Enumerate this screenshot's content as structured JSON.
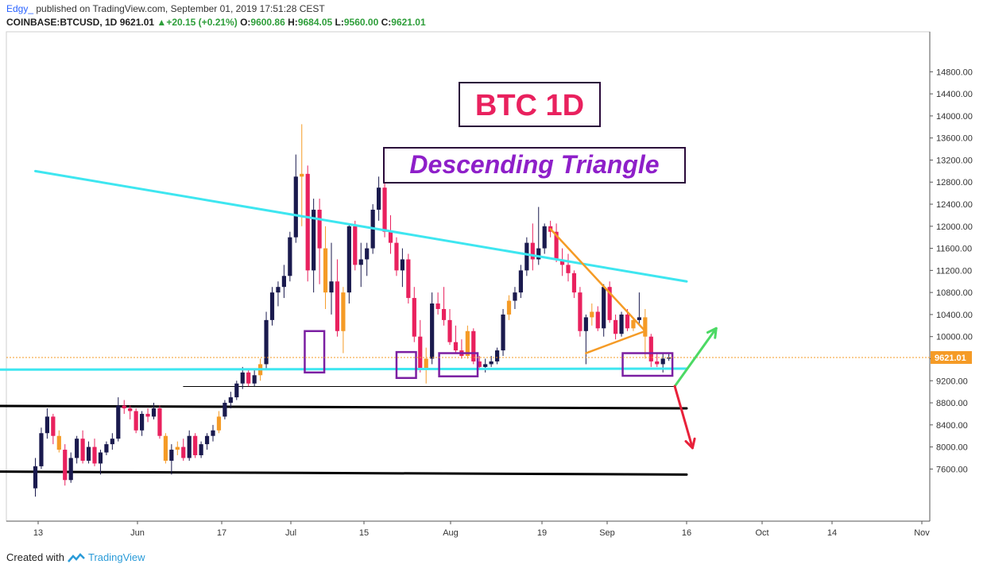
{
  "header": {
    "author": "Edgy_",
    "published": "published on TradingView.com, September 01, 2019 17:51:28 CEST",
    "symbol": "COINBASE:BTCUSD, 1D",
    "price": "9621.01",
    "change": "+20.15 (+0.21%)",
    "open_label": "O:",
    "open": "9600.86",
    "high_label": "H:",
    "high": "9684.05",
    "low_label": "L:",
    "low": "9560.00",
    "close_label": "C:",
    "close": "9621.01"
  },
  "footer": {
    "created_with": "Created with",
    "brand": "TradingView"
  },
  "colors": {
    "up": "#1a1a4e",
    "down": "#e9215e",
    "up_alt": "#f59b26",
    "cyan": "#3ee6f0",
    "purple": "#7b1fa2",
    "price_line": "#f59b26",
    "green_arrow": "#4cd964",
    "red_arrow": "#e8213a"
  },
  "chart_data": {
    "type": "candlestick",
    "title_box": "BTC 1D",
    "subtitle_box": "Descending Triangle",
    "ylim": [
      7300,
      15100
    ],
    "y_ticks": [
      "14800.00",
      "14400.00",
      "14000.00",
      "13600.00",
      "13200.00",
      "12800.00",
      "12400.00",
      "12000.00",
      "11600.00",
      "11200.00",
      "10800.00",
      "10400.00",
      "10000.00",
      "9600.00",
      "9200.00",
      "8800.00",
      "8400.00",
      "8000.00",
      "7600.00"
    ],
    "x_ticks": [
      "13",
      "Jun",
      "17",
      "Jul",
      "15",
      "Aug",
      "19",
      "Sep",
      "16",
      "Oct",
      "14",
      "Nov"
    ],
    "last_price_label": "9621.01",
    "candles": [
      [
        7250,
        7800,
        7100,
        7650
      ],
      [
        7650,
        8350,
        7600,
        8250
      ],
      [
        8250,
        8700,
        8150,
        8550
      ],
      [
        8550,
        8600,
        8050,
        8200
      ],
      [
        8200,
        8300,
        7900,
        7950
      ],
      [
        7950,
        8050,
        7300,
        7400
      ],
      [
        7400,
        7900,
        7350,
        7800
      ],
      [
        7800,
        8200,
        7700,
        8150
      ],
      [
        8150,
        8300,
        7700,
        7750
      ],
      [
        7750,
        8100,
        7700,
        8000
      ],
      [
        8000,
        8150,
        7650,
        7700
      ],
      [
        7700,
        7950,
        7500,
        7900
      ],
      [
        7900,
        8100,
        7850,
        8050
      ],
      [
        8050,
        8250,
        7950,
        8150
      ],
      [
        8150,
        8900,
        8100,
        8750
      ],
      [
        8750,
        8850,
        8600,
        8700
      ],
      [
        8700,
        8750,
        8500,
        8650
      ],
      [
        8650,
        8700,
        8250,
        8300
      ],
      [
        8300,
        8650,
        8200,
        8600
      ],
      [
        8600,
        8700,
        8450,
        8550
      ],
      [
        8550,
        8800,
        8500,
        8700
      ],
      [
        8700,
        8750,
        8150,
        8200
      ],
      [
        8200,
        8250,
        7700,
        7750
      ],
      [
        7750,
        8050,
        7500,
        7950
      ],
      [
        7950,
        8100,
        7850,
        8000
      ],
      [
        8000,
        8150,
        7750,
        7800
      ],
      [
        7800,
        8300,
        7750,
        8200
      ],
      [
        8200,
        8250,
        7800,
        7850
      ],
      [
        7850,
        8100,
        7800,
        8050
      ],
      [
        8050,
        8250,
        7950,
        8200
      ],
      [
        8200,
        8400,
        8100,
        8300
      ],
      [
        8300,
        8650,
        8250,
        8550
      ],
      [
        8550,
        8850,
        8500,
        8800
      ],
      [
        8800,
        9000,
        8700,
        8900
      ],
      [
        8900,
        9200,
        8850,
        9150
      ],
      [
        9150,
        9450,
        9050,
        9350
      ],
      [
        9350,
        9400,
        9100,
        9150
      ],
      [
        9150,
        9400,
        9100,
        9300
      ],
      [
        9300,
        9600,
        9200,
        9500
      ],
      [
        9500,
        10450,
        9400,
        10300
      ],
      [
        10300,
        10900,
        10200,
        10800
      ],
      [
        10800,
        11000,
        10550,
        10900
      ],
      [
        10900,
        11300,
        10700,
        11100
      ],
      [
        11100,
        11900,
        11000,
        11800
      ],
      [
        11800,
        13300,
        11700,
        12900
      ],
      [
        12900,
        13850,
        12000,
        12950
      ],
      [
        12950,
        13100,
        11000,
        11200
      ],
      [
        11200,
        12500,
        10800,
        12300
      ],
      [
        12300,
        12500,
        10950,
        11600
      ],
      [
        11600,
        12000,
        10500,
        10800
      ],
      [
        10800,
        11700,
        10400,
        11000
      ],
      [
        11000,
        11400,
        10000,
        10100
      ],
      [
        10100,
        10900,
        9700,
        10800
      ],
      [
        10800,
        12050,
        10600,
        12000
      ],
      [
        12000,
        12100,
        11200,
        11300
      ],
      [
        11300,
        11700,
        10900,
        11400
      ],
      [
        11400,
        11700,
        11100,
        11600
      ],
      [
        11600,
        12400,
        11500,
        12300
      ],
      [
        12300,
        12900,
        12100,
        12700
      ],
      [
        12700,
        13150,
        11800,
        11900
      ],
      [
        11900,
        12200,
        11500,
        11700
      ],
      [
        11700,
        11800,
        11100,
        11200
      ],
      [
        11200,
        11600,
        10900,
        11400
      ],
      [
        11400,
        11500,
        10600,
        10700
      ],
      [
        10700,
        10900,
        9900,
        10000
      ],
      [
        10000,
        10300,
        9350,
        9400
      ],
      [
        9400,
        9800,
        9150,
        9600
      ],
      [
        9600,
        10800,
        9500,
        10600
      ],
      [
        10600,
        10800,
        10400,
        10500
      ],
      [
        10500,
        10900,
        10200,
        10300
      ],
      [
        10300,
        10500,
        9850,
        9900
      ],
      [
        9900,
        10200,
        9700,
        9750
      ],
      [
        9750,
        9950,
        9600,
        9650
      ],
      [
        9650,
        10200,
        9600,
        10100
      ],
      [
        10100,
        10150,
        9500,
        9550
      ],
      [
        9550,
        9650,
        9400,
        9450
      ],
      [
        9450,
        9600,
        9350,
        9500
      ],
      [
        9500,
        9650,
        9450,
        9550
      ],
      [
        9550,
        9800,
        9500,
        9750
      ],
      [
        9750,
        10500,
        9650,
        10400
      ],
      [
        10400,
        10750,
        10300,
        10650
      ],
      [
        10650,
        10900,
        10500,
        10800
      ],
      [
        10800,
        11300,
        10700,
        11200
      ],
      [
        11200,
        11800,
        11100,
        11700
      ],
      [
        11700,
        12050,
        11200,
        11400
      ],
      [
        11400,
        12350,
        11300,
        11600
      ],
      [
        11600,
        12050,
        11500,
        12000
      ],
      [
        12000,
        12100,
        11800,
        11900
      ],
      [
        11900,
        12050,
        11350,
        11400
      ],
      [
        11400,
        11600,
        11100,
        11300
      ],
      [
        11300,
        11500,
        11000,
        11150
      ],
      [
        11150,
        11200,
        10700,
        10800
      ],
      [
        10800,
        10900,
        10000,
        10100
      ],
      [
        10100,
        10400,
        9500,
        10350
      ],
      [
        10350,
        10600,
        10200,
        10450
      ],
      [
        10450,
        10550,
        10100,
        10150
      ],
      [
        10150,
        10950,
        10000,
        10900
      ],
      [
        10900,
        11000,
        10250,
        10300
      ],
      [
        10300,
        10400,
        9950,
        10050
      ],
      [
        10050,
        10450,
        10000,
        10400
      ],
      [
        10400,
        10500,
        10100,
        10150
      ],
      [
        10150,
        10350,
        10100,
        10300
      ],
      [
        10300,
        10800,
        10200,
        10350
      ],
      [
        10350,
        10500,
        9600,
        10000
      ],
      [
        10000,
        10050,
        9450,
        9550
      ],
      [
        9550,
        9700,
        9450,
        9500
      ],
      [
        9500,
        9700,
        9350,
        9601
      ],
      [
        9601,
        9684,
        9560,
        9621
      ]
    ],
    "trendlines": {
      "upper_resistance": [
        [
          0,
          13000
        ],
        [
          110,
          11000
        ]
      ],
      "support": [
        [
          -16,
          9400
        ],
        [
          110,
          9420
        ]
      ],
      "lower_support": [
        [
          25,
          9095
        ],
        [
          108,
          9095
        ]
      ],
      "black_upper": [
        [
          -24,
          8750
        ],
        [
          110,
          8700
        ]
      ],
      "black_lower": [
        [
          -22,
          7560
        ],
        [
          110,
          7500
        ]
      ],
      "triangle_upper": [
        [
          87,
          11950
        ],
        [
          103,
          10100
        ]
      ],
      "triangle_lower": [
        [
          93,
          9700
        ],
        [
          103,
          10100
        ]
      ]
    },
    "boxes": [
      {
        "from": [
          45.5,
          10100
        ],
        "to": [
          48.8,
          9350
        ]
      },
      {
        "from": [
          61,
          9720
        ],
        "to": [
          64.3,
          9250
        ]
      },
      {
        "from": [
          68.2,
          9700
        ],
        "to": [
          74.7,
          9280
        ]
      },
      {
        "from": [
          99.2,
          9700
        ],
        "to": [
          107.6,
          9290
        ]
      }
    ],
    "arrows": {
      "green": [
        [
          108,
          9100
        ],
        [
          115,
          10150
        ]
      ],
      "red": [
        [
          108,
          9100
        ],
        [
          111,
          7980
        ]
      ]
    }
  }
}
